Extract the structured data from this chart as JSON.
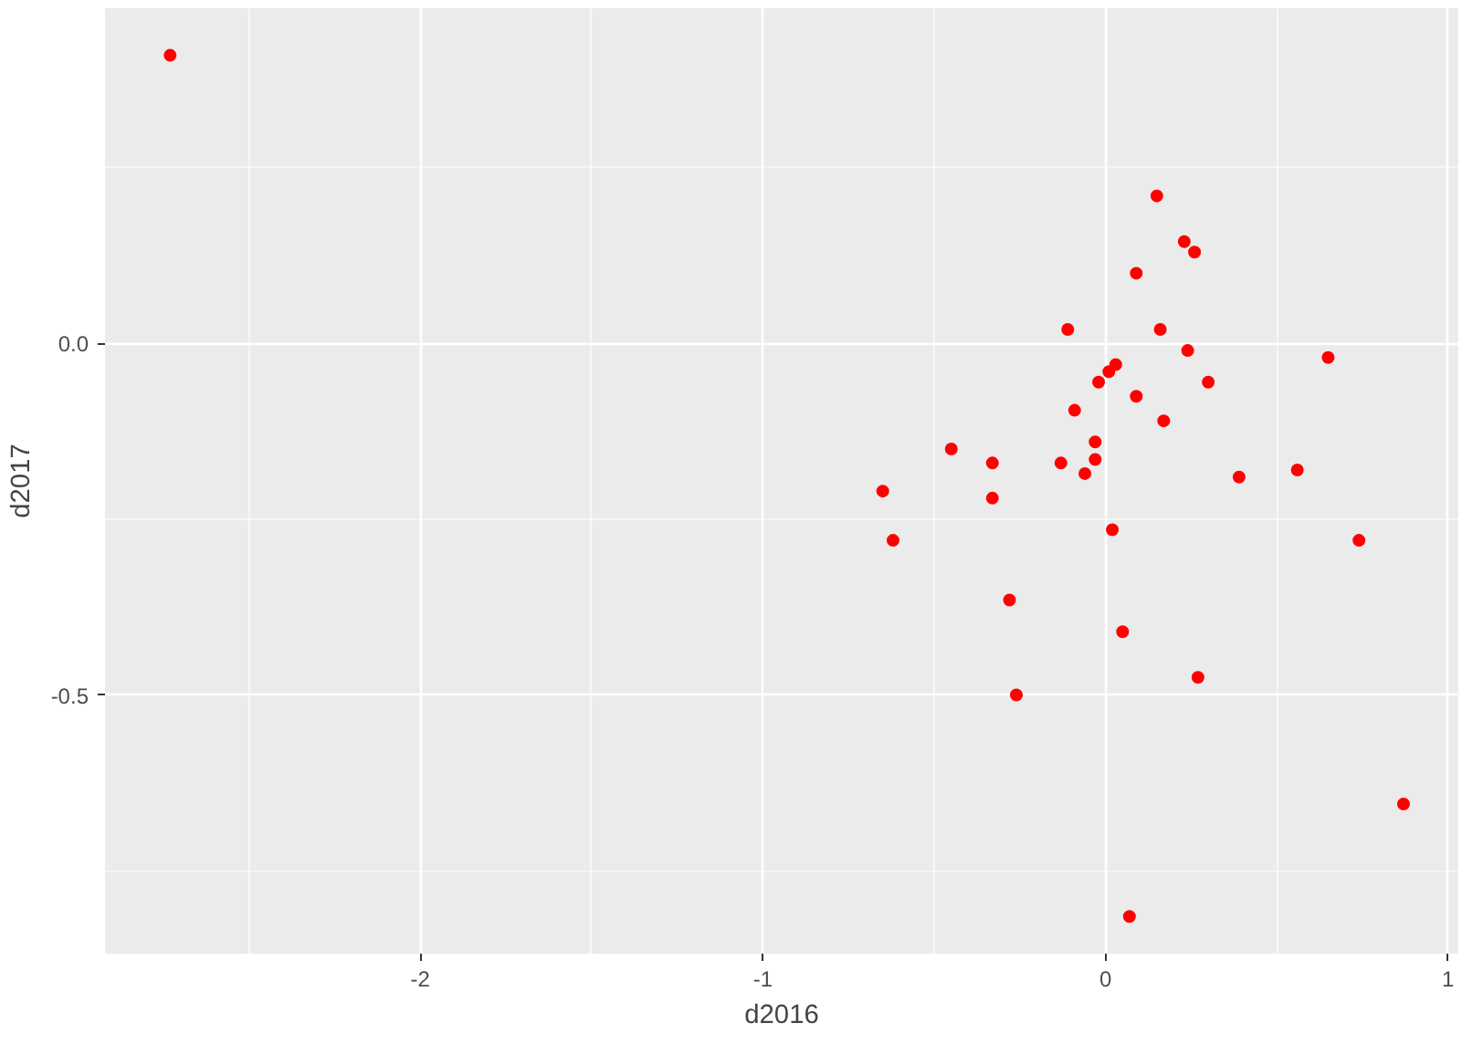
{
  "chart_data": {
    "type": "scatter",
    "xlabel": "d2016",
    "ylabel": "d2017",
    "xlim": [
      -2.92,
      1.03
    ],
    "ylim": [
      -0.868,
      0.477
    ],
    "xticks": [
      -2,
      -1,
      0,
      1
    ],
    "yticks": [
      {
        "value": -0.5,
        "label": "-0.5"
      },
      {
        "value": 0,
        "label": "0.0"
      }
    ],
    "grid": true,
    "marker": "circle",
    "series": [
      {
        "color": "#ff0000",
        "x": [
          -2.73,
          0.15,
          0.23,
          0.26,
          0.09,
          -0.11,
          0.16,
          0.65,
          0.24,
          0.03,
          0.01,
          -0.02,
          0.3,
          0.09,
          -0.09,
          0.17,
          -0.45,
          -0.03,
          -0.03,
          -0.33,
          -0.13,
          -0.06,
          0.56,
          0.39,
          -0.65,
          -0.33,
          0.02,
          -0.62,
          0.74,
          -0.28,
          0.05,
          0.27,
          -0.26,
          0.87,
          0.07
        ],
        "values": [
          0.41,
          0.21,
          0.145,
          0.13,
          0.1,
          0.02,
          0.02,
          -0.02,
          -0.01,
          -0.03,
          -0.04,
          -0.055,
          -0.055,
          -0.075,
          -0.095,
          -0.11,
          -0.15,
          -0.14,
          -0.165,
          -0.17,
          -0.17,
          -0.185,
          -0.18,
          -0.19,
          -0.21,
          -0.22,
          -0.265,
          -0.28,
          -0.28,
          -0.365,
          -0.41,
          -0.475,
          -0.5,
          -0.655,
          -0.815
        ]
      }
    ]
  }
}
